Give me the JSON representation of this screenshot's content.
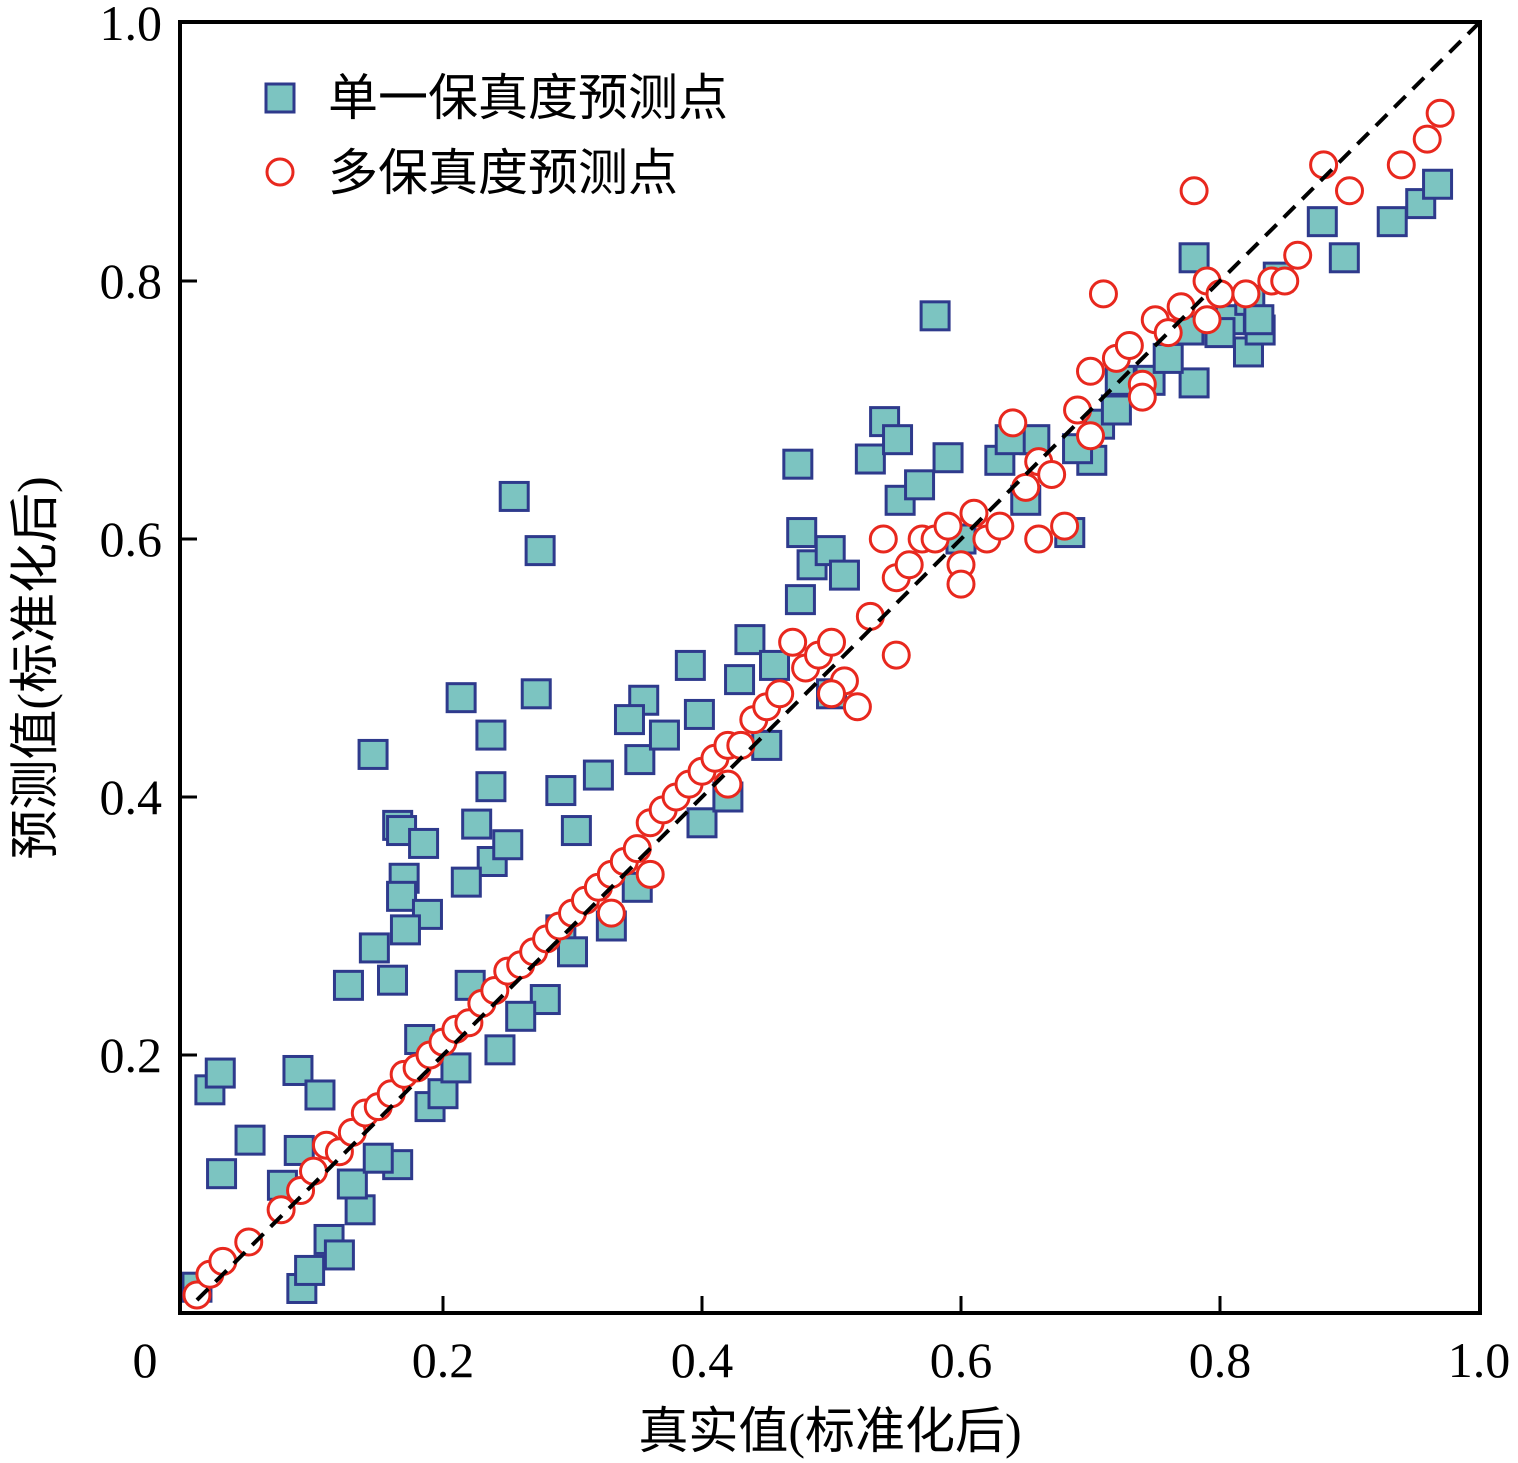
{
  "chart_data": {
    "type": "scatter",
    "title": "",
    "xlabel": "真实值(标准化后)",
    "ylabel": "预测值(标准化后)",
    "xlim": [
      0,
      1.0
    ],
    "ylim": [
      0,
      1.0
    ],
    "x_ticks": [
      "0",
      "0.2",
      "0.4",
      "0.6",
      "0.8",
      "1.0"
    ],
    "y_ticks": [
      "0.2",
      "0.4",
      "0.6",
      "0.8",
      "1.0"
    ],
    "grid": false,
    "legend_position": "top-left",
    "reference_line": {
      "type": "y=x",
      "style": "dashed",
      "color": "#000000"
    },
    "series": [
      {
        "name": "单一保真度预测点",
        "marker": "square",
        "fill": "#7cc4c1",
        "stroke": "#2e3a8c",
        "points": [
          [
            0.02,
            0.173
          ],
          [
            0.028,
            0.186
          ],
          [
            0.029,
            0.108
          ],
          [
            0.051,
            0.134
          ],
          [
            0.088,
            0.188
          ],
          [
            0.146,
            0.433
          ],
          [
            0.165,
            0.378
          ],
          [
            0.168,
            0.374
          ],
          [
            0.185,
            0.364
          ],
          [
            0.17,
            0.337
          ],
          [
            0.168,
            0.323
          ],
          [
            0.188,
            0.309
          ],
          [
            0.171,
            0.297
          ],
          [
            0.147,
            0.283
          ],
          [
            0.161,
            0.258
          ],
          [
            0.127,
            0.254
          ],
          [
            0.214,
            0.477
          ],
          [
            0.237,
            0.448
          ],
          [
            0.237,
            0.408
          ],
          [
            0.226,
            0.379
          ],
          [
            0.238,
            0.35
          ],
          [
            0.218,
            0.334
          ],
          [
            0.25,
            0.363
          ],
          [
            0.255,
            0.633
          ],
          [
            0.275,
            0.591
          ],
          [
            0.272,
            0.48
          ],
          [
            0.391,
            0.502
          ],
          [
            0.437,
            0.522
          ],
          [
            0.474,
            0.658
          ],
          [
            0.477,
            0.605
          ],
          [
            0.58,
            0.773
          ],
          [
            0.53,
            0.662
          ],
          [
            0.541,
            0.691
          ],
          [
            0.551,
            0.677
          ],
          [
            0.59,
            0.663
          ],
          [
            0.78,
            0.818
          ],
          [
            0.896,
            0.818
          ],
          [
            0.879,
            0.846
          ],
          [
            0.933,
            0.846
          ],
          [
            0.955,
            0.86
          ],
          [
            0.968,
            0.875
          ],
          [
            0.845,
            0.803
          ],
          [
            0.822,
            0.745
          ],
          [
            0.78,
            0.721
          ],
          [
            0.707,
            0.689
          ],
          [
            0.684,
            0.605
          ],
          [
            0.657,
            0.677
          ],
          [
            0.091,
            0.019
          ],
          [
            0.097,
            0.033
          ],
          [
            0.112,
            0.057
          ],
          [
            0.12,
            0.045
          ],
          [
            0.136,
            0.08
          ],
          [
            0.165,
            0.115
          ],
          [
            0.076,
            0.099
          ],
          [
            0.089,
            0.126
          ],
          [
            0.105,
            0.169
          ],
          [
            0.244,
            0.204
          ],
          [
            0.279,
            0.243
          ],
          [
            0.221,
            0.254
          ],
          [
            0.182,
            0.212
          ],
          [
            0.291,
            0.297
          ],
          [
            0.291,
            0.405
          ],
          [
            0.303,
            0.374
          ],
          [
            0.32,
            0.417
          ],
          [
            0.352,
            0.429
          ],
          [
            0.355,
            0.475
          ],
          [
            0.344,
            0.46
          ],
          [
            0.398,
            0.464
          ],
          [
            0.371,
            0.448
          ],
          [
            0.429,
            0.491
          ],
          [
            0.456,
            0.502
          ],
          [
            0.476,
            0.553
          ],
          [
            0.485,
            0.58
          ],
          [
            0.499,
            0.591
          ],
          [
            0.51,
            0.572
          ],
          [
            0.553,
            0.63
          ],
          [
            0.568,
            0.642
          ],
          [
            0.63,
            0.661
          ],
          [
            0.638,
            0.677
          ],
          [
            0.701,
            0.661
          ],
          [
            0.723,
            0.723
          ],
          [
            0.746,
            0.723
          ],
          [
            0.776,
            0.762
          ],
          [
            0.808,
            0.77
          ],
          [
            0.831,
            0.762
          ],
          [
            0.823,
            0.785
          ],
          [
            0.01,
            0.02
          ],
          [
            0.13,
            0.1
          ],
          [
            0.15,
            0.12
          ],
          [
            0.19,
            0.16
          ],
          [
            0.2,
            0.17
          ],
          [
            0.21,
            0.19
          ],
          [
            0.26,
            0.23
          ],
          [
            0.3,
            0.28
          ],
          [
            0.33,
            0.3
          ],
          [
            0.35,
            0.33
          ],
          [
            0.4,
            0.38
          ],
          [
            0.42,
            0.4
          ],
          [
            0.45,
            0.44
          ],
          [
            0.5,
            0.48
          ],
          [
            0.6,
            0.6
          ],
          [
            0.65,
            0.63
          ],
          [
            0.69,
            0.67
          ],
          [
            0.72,
            0.7
          ],
          [
            0.76,
            0.74
          ],
          [
            0.8,
            0.76
          ],
          [
            0.83,
            0.77
          ]
        ]
      },
      {
        "name": "多保真度预测点",
        "marker": "circle",
        "fill": "#ffffff",
        "stroke": "#e8281e",
        "points": [
          [
            0.01,
            0.014
          ],
          [
            0.02,
            0.03
          ],
          [
            0.03,
            0.04
          ],
          [
            0.05,
            0.055
          ],
          [
            0.075,
            0.08
          ],
          [
            0.09,
            0.095
          ],
          [
            0.1,
            0.11
          ],
          [
            0.11,
            0.13
          ],
          [
            0.12,
            0.125
          ],
          [
            0.13,
            0.14
          ],
          [
            0.14,
            0.155
          ],
          [
            0.15,
            0.16
          ],
          [
            0.16,
            0.17
          ],
          [
            0.17,
            0.185
          ],
          [
            0.18,
            0.19
          ],
          [
            0.19,
            0.2
          ],
          [
            0.2,
            0.21
          ],
          [
            0.21,
            0.22
          ],
          [
            0.22,
            0.225
          ],
          [
            0.23,
            0.24
          ],
          [
            0.24,
            0.25
          ],
          [
            0.25,
            0.265
          ],
          [
            0.26,
            0.27
          ],
          [
            0.27,
            0.28
          ],
          [
            0.28,
            0.29
          ],
          [
            0.29,
            0.3
          ],
          [
            0.3,
            0.31
          ],
          [
            0.31,
            0.32
          ],
          [
            0.32,
            0.33
          ],
          [
            0.33,
            0.34
          ],
          [
            0.34,
            0.35
          ],
          [
            0.35,
            0.36
          ],
          [
            0.36,
            0.38
          ],
          [
            0.37,
            0.39
          ],
          [
            0.38,
            0.4
          ],
          [
            0.39,
            0.41
          ],
          [
            0.4,
            0.42
          ],
          [
            0.41,
            0.43
          ],
          [
            0.42,
            0.44
          ],
          [
            0.43,
            0.44
          ],
          [
            0.44,
            0.46
          ],
          [
            0.45,
            0.47
          ],
          [
            0.46,
            0.48
          ],
          [
            0.47,
            0.52
          ],
          [
            0.48,
            0.5
          ],
          [
            0.49,
            0.51
          ],
          [
            0.5,
            0.52
          ],
          [
            0.51,
            0.49
          ],
          [
            0.52,
            0.47
          ],
          [
            0.53,
            0.54
          ],
          [
            0.54,
            0.6
          ],
          [
            0.55,
            0.57
          ],
          [
            0.56,
            0.58
          ],
          [
            0.57,
            0.6
          ],
          [
            0.58,
            0.6
          ],
          [
            0.59,
            0.61
          ],
          [
            0.6,
            0.58
          ],
          [
            0.61,
            0.62
          ],
          [
            0.62,
            0.6
          ],
          [
            0.63,
            0.61
          ],
          [
            0.64,
            0.69
          ],
          [
            0.65,
            0.64
          ],
          [
            0.66,
            0.66
          ],
          [
            0.67,
            0.65
          ],
          [
            0.68,
            0.61
          ],
          [
            0.69,
            0.7
          ],
          [
            0.7,
            0.73
          ],
          [
            0.71,
            0.79
          ],
          [
            0.72,
            0.74
          ],
          [
            0.73,
            0.75
          ],
          [
            0.74,
            0.72
          ],
          [
            0.75,
            0.77
          ],
          [
            0.76,
            0.76
          ],
          [
            0.77,
            0.78
          ],
          [
            0.78,
            0.87
          ],
          [
            0.79,
            0.8
          ],
          [
            0.8,
            0.79
          ],
          [
            0.82,
            0.79
          ],
          [
            0.84,
            0.8
          ],
          [
            0.85,
            0.8
          ],
          [
            0.86,
            0.82
          ],
          [
            0.88,
            0.89
          ],
          [
            0.9,
            0.87
          ],
          [
            0.94,
            0.89
          ],
          [
            0.96,
            0.91
          ],
          [
            0.97,
            0.93
          ],
          [
            0.33,
            0.31
          ],
          [
            0.36,
            0.34
          ],
          [
            0.42,
            0.41
          ],
          [
            0.5,
            0.48
          ],
          [
            0.55,
            0.51
          ],
          [
            0.6,
            0.565
          ],
          [
            0.66,
            0.6
          ],
          [
            0.7,
            0.68
          ],
          [
            0.74,
            0.71
          ],
          [
            0.79,
            0.77
          ]
        ]
      }
    ]
  }
}
